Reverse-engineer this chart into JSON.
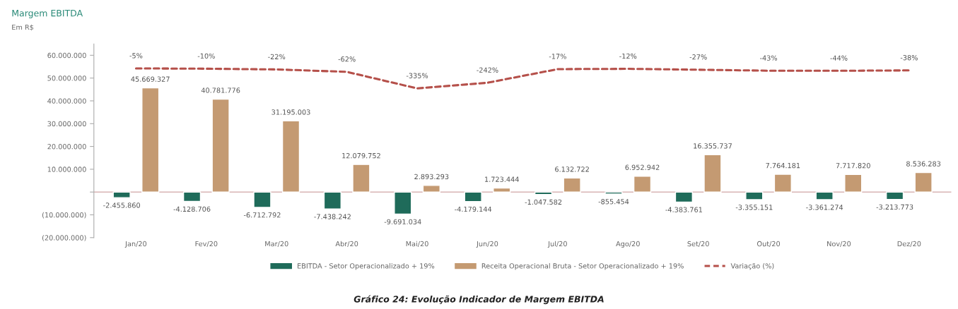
{
  "chart_data": {
    "type": "bar",
    "title": "Margem EBITDA",
    "subtitle": "Em R$",
    "categories": [
      "Jan/20",
      "Fev/20",
      "Mar/20",
      "Abr/20",
      "Mai/20",
      "Jun/20",
      "Jul/20",
      "Ago/20",
      "Set/20",
      "Out/20",
      "Nov/20",
      "Dez/20"
    ],
    "series": [
      {
        "name": "EBITDA - Setor Operacionalizado + 19%",
        "color": "#1f6b5a",
        "values": [
          -2455860,
          -4128706,
          -6712792,
          -7438242,
          -9691034,
          -4179144,
          -1047582,
          -855454,
          -4383761,
          -3355151,
          -3361274,
          -3213773
        ],
        "value_labels": [
          "-2.455.860",
          "-4.128.706",
          "-6.712.792",
          "-7.438.242",
          "-9.691.034",
          "-4.179.144",
          "-1.047.582",
          "-855.454",
          "-4.383.761",
          "-3.355.151",
          "-3.361.274",
          "-3.213.773"
        ]
      },
      {
        "name": "Receita Operacional Bruta - Setor Operacionalizado + 19%",
        "color": "#c49a72",
        "values": [
          45669327,
          40781776,
          31195003,
          12079752,
          2893293,
          1723444,
          6132722,
          6952942,
          16355737,
          7764181,
          7717820,
          8536283
        ],
        "value_labels": [
          "45.669.327",
          "40.781.776",
          "31.195.003",
          "12.079.752",
          "2.893.293",
          "1.723.444",
          "6.132.722",
          "6.952.942",
          "16.355.737",
          "7.764.181",
          "7.717.820",
          "8.536.283"
        ]
      },
      {
        "name": "Variação (%)",
        "type": "line",
        "axis": "y2",
        "color": "#b5504a",
        "line_style": "dashed",
        "marker": "none",
        "values": [
          -5,
          -10,
          -22,
          -62,
          -335,
          -242,
          -17,
          -12,
          -27,
          -43,
          -44,
          -38
        ],
        "value_labels": [
          "-5%",
          "-10%",
          "-22%",
          "-62%",
          "-335%",
          "-242%",
          "-17%",
          "-12%",
          "-27%",
          "-43%",
          "-44%",
          "-38%"
        ]
      }
    ],
    "ylim": [
      -20000000,
      65000000
    ],
    "yticks": [
      {
        "value": -20000000,
        "label": "(20.000.000)"
      },
      {
        "value": -10000000,
        "label": "(10.000.000)"
      },
      {
        "value": 0,
        "label": null
      },
      {
        "value": 10000000,
        "label": "10.000.000"
      },
      {
        "value": 20000000,
        "label": "20.000.000"
      },
      {
        "value": 30000000,
        "label": "30.000.000"
      },
      {
        "value": 40000000,
        "label": "40.000.000"
      },
      {
        "value": 50000000,
        "label": "50.000.000"
      },
      {
        "value": 60000000,
        "label": "60.000.000"
      }
    ],
    "y2lim": [
      -2800,
      400
    ],
    "ref_lines": [
      {
        "axis": "y",
        "value": 0,
        "color": "#d8b4b4"
      }
    ],
    "grid": false,
    "legend": "bottom",
    "annotations": [
      "Gráfico 24: Evolução Indicador de Margem EBITDA"
    ]
  }
}
